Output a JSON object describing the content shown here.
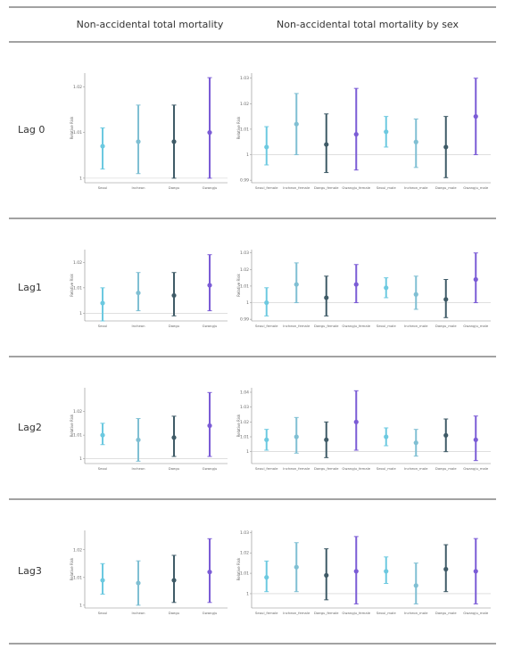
{
  "header": [
    "Non-accidental total mortality",
    "Non-accidental total mortality by sex"
  ],
  "rows": [
    "Lag 0",
    "Lag1",
    "Lag2",
    "Lag3"
  ],
  "chart_data": [
    {
      "type": "errorbar",
      "ylabel": "Relative Risk",
      "reference": 1,
      "categories": [
        "Seoul",
        "Incheon",
        "Daegu",
        "Gwangju"
      ],
      "colors": [
        "#6cc9e0",
        "#7fbfd3",
        "#3f5b67",
        "#7b5cd6"
      ],
      "values": [
        1.007,
        1.008,
        1.008,
        1.01
      ],
      "lower": [
        1.002,
        1.001,
        1.0,
        1.0
      ],
      "upper": [
        1.011,
        1.016,
        1.016,
        1.022
      ],
      "ylim": [
        0.999,
        1.023
      ],
      "yticks": [
        1,
        1.01,
        1.02
      ]
    },
    {
      "type": "errorbar",
      "ylabel": "Relative Risk",
      "reference": 1,
      "categories": [
        "Seoul_female",
        "Incheon_female",
        "Daegu_female",
        "Gwangju_female",
        "Seoul_male",
        "Incheon_male",
        "Daegu_male",
        "Gwangju_male"
      ],
      "colors": [
        "#6cc9e0",
        "#7fbfd3",
        "#3f5b67",
        "#7b5cd6",
        "#6cc9e0",
        "#7fbfd3",
        "#3f5b67",
        "#7b5cd6"
      ],
      "values": [
        1.003,
        1.012,
        1.004,
        1.008,
        1.009,
        1.005,
        1.003,
        1.015
      ],
      "lower": [
        0.996,
        1.0,
        0.993,
        0.994,
        1.003,
        0.995,
        0.991,
        1.0
      ],
      "upper": [
        1.011,
        1.024,
        1.016,
        1.026,
        1.015,
        1.014,
        1.015,
        1.03
      ],
      "ylim": [
        0.989,
        1.032
      ],
      "yticks": [
        0.99,
        1,
        1.01,
        1.02,
        1.03
      ]
    },
    {
      "type": "errorbar",
      "ylabel": "Relative Risk",
      "reference": 1,
      "categories": [
        "Seoul",
        "Incheon",
        "Daegu",
        "Gwangju"
      ],
      "colors": [
        "#6cc9e0",
        "#7fbfd3",
        "#3f5b67",
        "#7b5cd6"
      ],
      "values": [
        1.004,
        1.008,
        1.007,
        1.011
      ],
      "lower": [
        0.997,
        1.001,
        0.999,
        1.001
      ],
      "upper": [
        1.01,
        1.016,
        1.016,
        1.023
      ],
      "ylim": [
        0.997,
        1.025
      ],
      "yticks": [
        1,
        1.01,
        1.02
      ]
    },
    {
      "type": "errorbar",
      "ylabel": "Relative Risk",
      "reference": 1,
      "categories": [
        "Seoul_female",
        "Incheon_female",
        "Daegu_female",
        "Gwangju_female",
        "Seoul_male",
        "Incheon_male",
        "Daegu_male",
        "Gwangju_male"
      ],
      "colors": [
        "#6cc9e0",
        "#7fbfd3",
        "#3f5b67",
        "#7b5cd6",
        "#6cc9e0",
        "#7fbfd3",
        "#3f5b67",
        "#7b5cd6"
      ],
      "values": [
        1.0,
        1.011,
        1.003,
        1.011,
        1.009,
        1.005,
        1.002,
        1.014
      ],
      "lower": [
        0.992,
        1.0,
        0.992,
        1.0,
        1.003,
        0.996,
        0.991,
        1.0
      ],
      "upper": [
        1.009,
        1.024,
        1.016,
        1.023,
        1.015,
        1.016,
        1.014,
        1.03
      ],
      "ylim": [
        0.989,
        1.032
      ],
      "yticks": [
        0.99,
        1,
        1.01,
        1.02,
        1.03
      ]
    },
    {
      "type": "errorbar",
      "ylabel": "Relative Risk",
      "reference": 1,
      "categories": [
        "Seoul",
        "Incheon",
        "Daegu",
        "Gwangju"
      ],
      "colors": [
        "#6cc9e0",
        "#7fbfd3",
        "#3f5b67",
        "#7b5cd6"
      ],
      "values": [
        1.01,
        1.008,
        1.009,
        1.014
      ],
      "lower": [
        1.006,
        0.999,
        1.001,
        1.001
      ],
      "upper": [
        1.015,
        1.017,
        1.018,
        1.028
      ],
      "ylim": [
        0.998,
        1.03
      ],
      "yticks": [
        1,
        1.01,
        1.02
      ]
    },
    {
      "type": "errorbar",
      "ylabel": "Relative Risk",
      "reference": 1,
      "categories": [
        "Seoul_female",
        "Incheon_female",
        "Daegu_female",
        "Gwangju_female",
        "Seoul_male",
        "Incheon_male",
        "Daegu_male",
        "Gwangju_male"
      ],
      "colors": [
        "#6cc9e0",
        "#7fbfd3",
        "#3f5b67",
        "#7b5cd6",
        "#6cc9e0",
        "#7fbfd3",
        "#3f5b67",
        "#7b5cd6"
      ],
      "values": [
        1.008,
        1.01,
        1.008,
        1.02,
        1.01,
        1.006,
        1.011,
        1.008
      ],
      "lower": [
        1.001,
        0.999,
        0.996,
        1.001,
        1.004,
        0.997,
        1.0,
        0.994
      ],
      "upper": [
        1.015,
        1.023,
        1.02,
        1.041,
        1.016,
        1.015,
        1.022,
        1.024
      ],
      "ylim": [
        0.992,
        1.043
      ],
      "yticks": [
        1,
        1.01,
        1.02,
        1.03,
        1.04
      ]
    },
    {
      "type": "errorbar",
      "ylabel": "Relative Risk",
      "reference": null,
      "categories": [
        "Seoul",
        "Incheon",
        "Daegu",
        "Gwangju"
      ],
      "colors": [
        "#6cc9e0",
        "#7fbfd3",
        "#3f5b67",
        "#7b5cd6"
      ],
      "values": [
        1.009,
        1.008,
        1.009,
        1.012
      ],
      "lower": [
        1.004,
        1.0,
        1.001,
        1.001
      ],
      "upper": [
        1.015,
        1.016,
        1.018,
        1.024
      ],
      "ylim": [
        0.999,
        1.027
      ],
      "yticks": [
        1,
        1.01,
        1.02
      ]
    },
    {
      "type": "errorbar",
      "ylabel": "Relative Risk",
      "reference": 1,
      "categories": [
        "Seoul_female",
        "Incheon_female",
        "Daegu_female",
        "Gwangju_female",
        "Seoul_male",
        "Incheon_male",
        "Daegu_male",
        "Gwangju_male"
      ],
      "colors": [
        "#6cc9e0",
        "#7fbfd3",
        "#3f5b67",
        "#7b5cd6",
        "#6cc9e0",
        "#7fbfd3",
        "#3f5b67",
        "#7b5cd6"
      ],
      "values": [
        1.008,
        1.013,
        1.009,
        1.011,
        1.011,
        1.004,
        1.012,
        1.011
      ],
      "lower": [
        1.001,
        1.001,
        0.997,
        0.995,
        1.005,
        0.995,
        1.001,
        0.995
      ],
      "upper": [
        1.016,
        1.025,
        1.022,
        1.028,
        1.018,
        1.015,
        1.024,
        1.027
      ],
      "ylim": [
        0.993,
        1.031
      ],
      "yticks": [
        1,
        1.01,
        1.02,
        1.03
      ]
    }
  ]
}
